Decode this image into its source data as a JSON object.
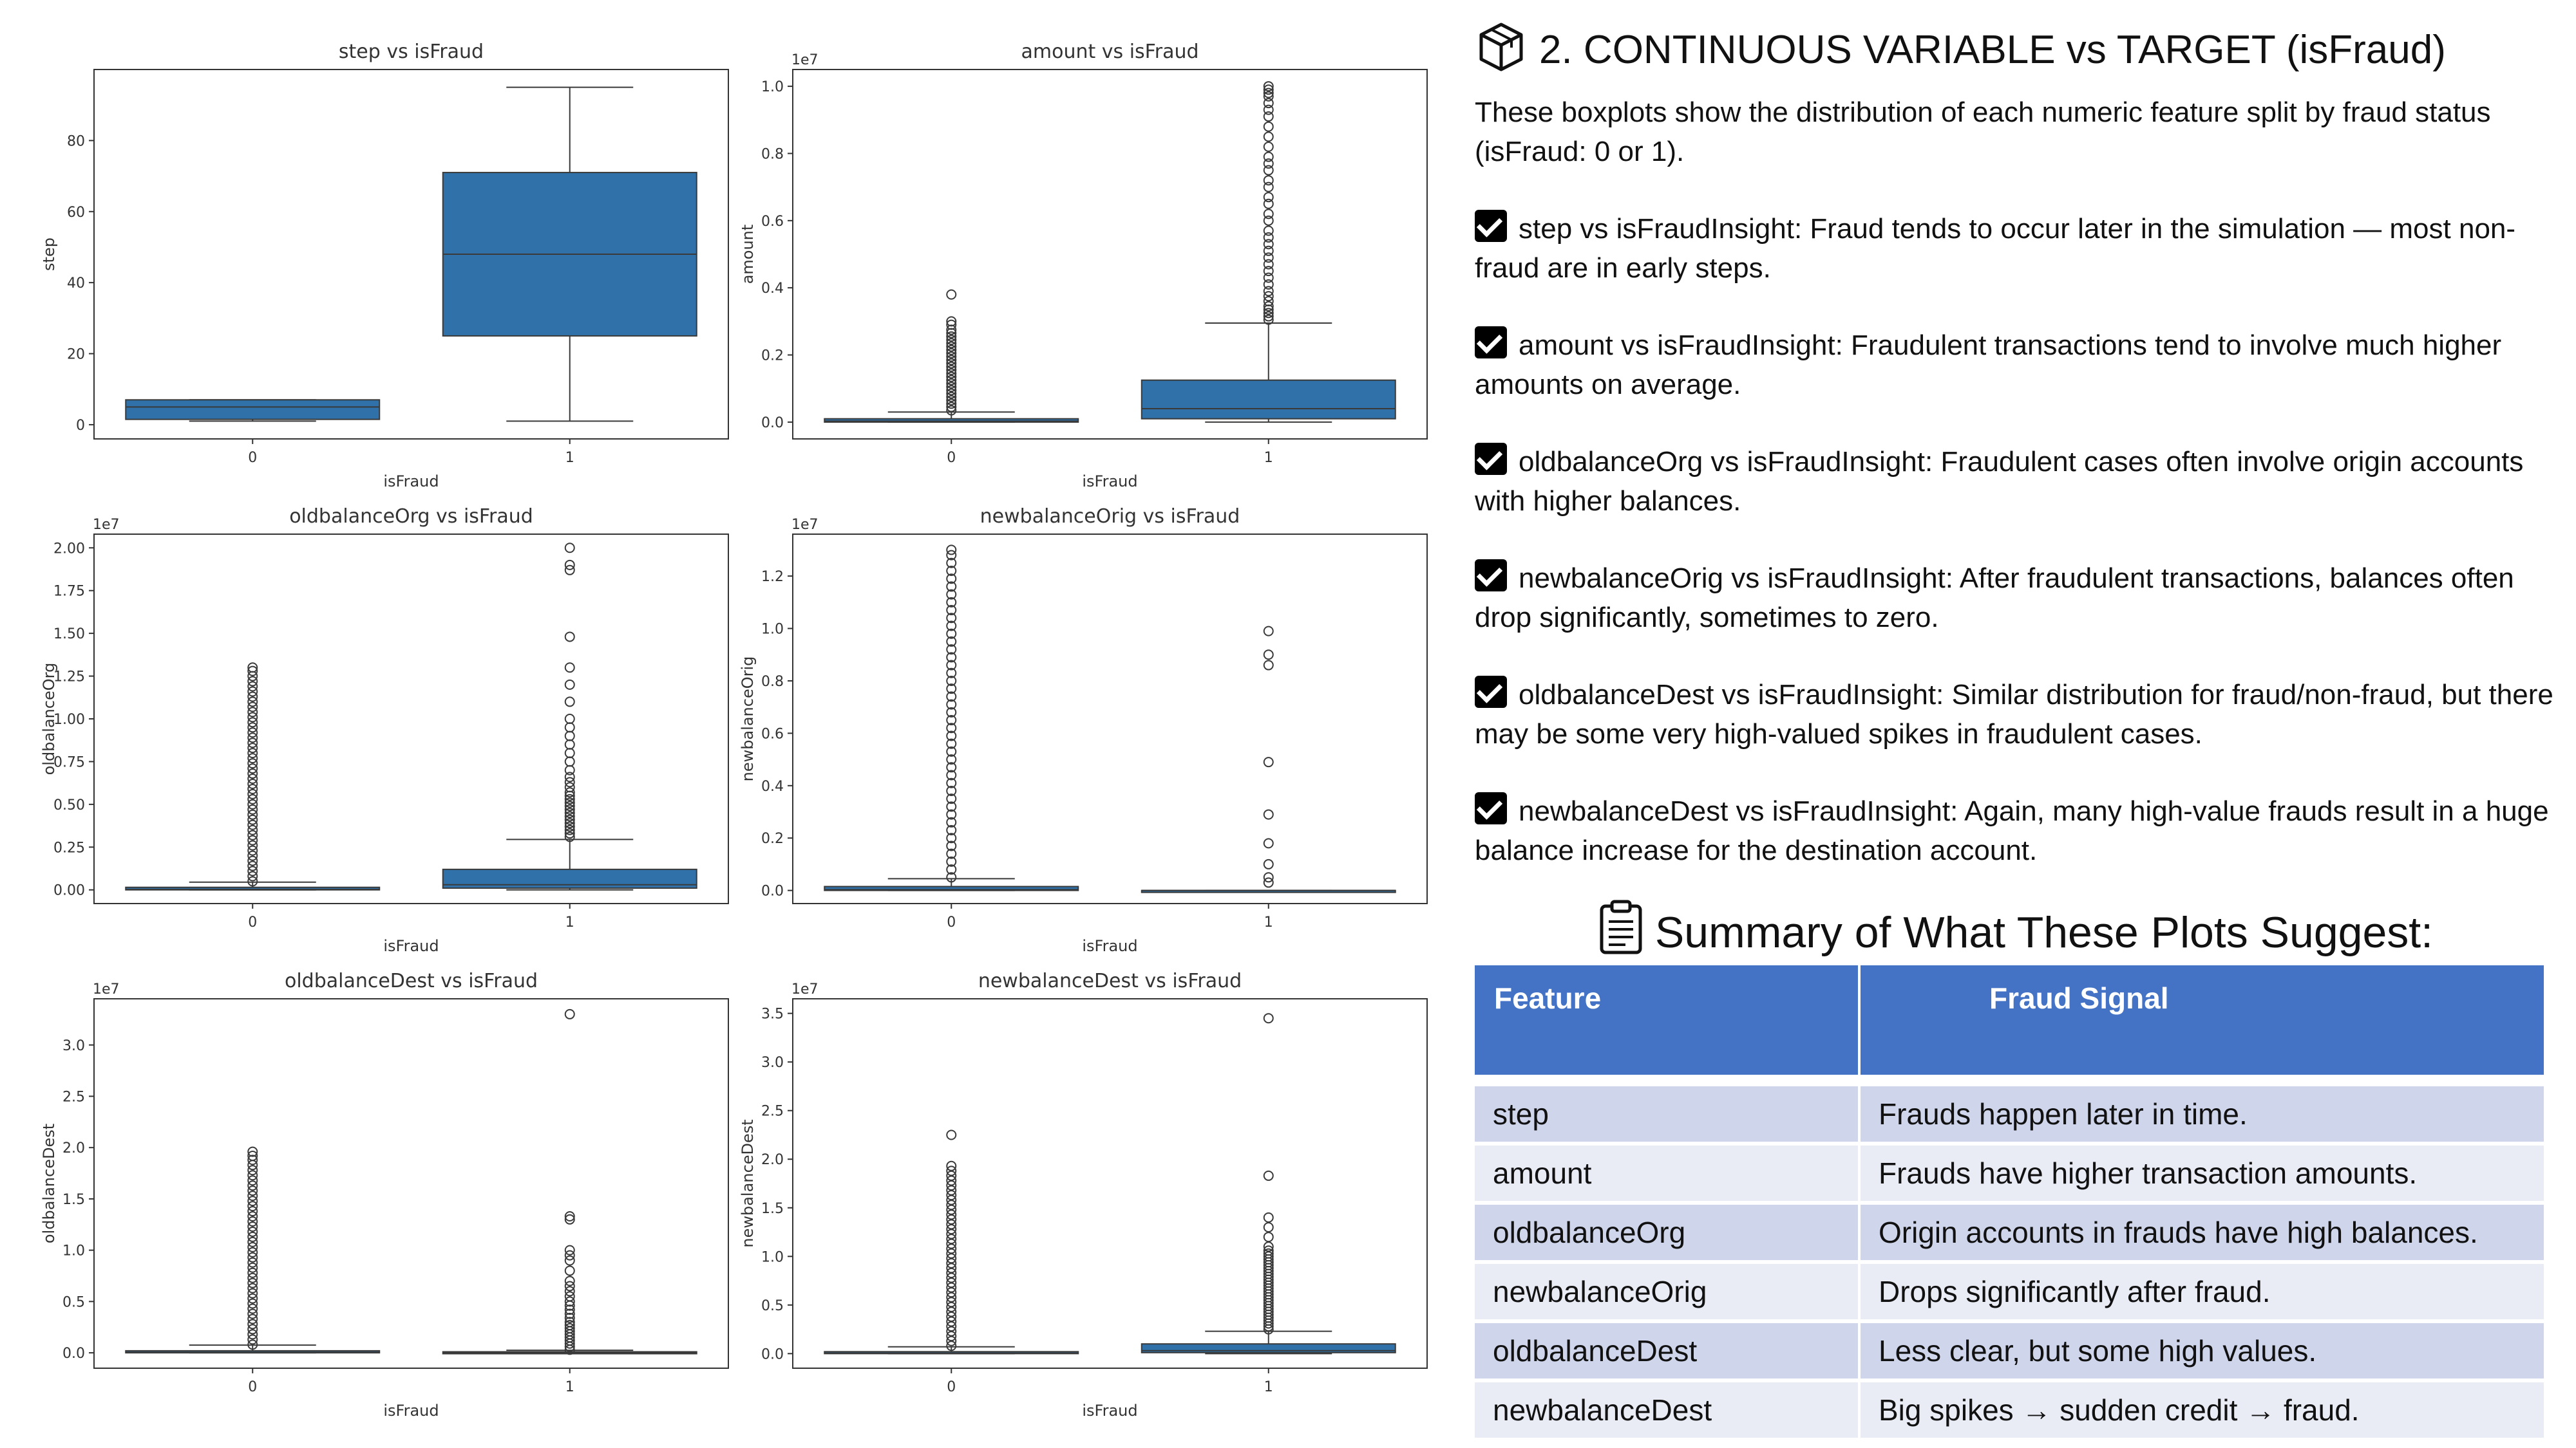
{
  "charts": {
    "common_xlabel": "isFraud",
    "categories": [
      "0",
      "1"
    ]
  },
  "chart_data": [
    {
      "type": "box",
      "title": "step vs isFraud",
      "xlabel": "isFraud",
      "ylabel": "step",
      "exponent": "",
      "categories": [
        "0",
        "1"
      ],
      "yticks": [
        0,
        20,
        40,
        60,
        80
      ],
      "ytick_labels": [
        "0",
        "20",
        "40",
        "60",
        "80"
      ],
      "ylim": [
        -4,
        100
      ],
      "boxes": [
        {
          "category": "0",
          "whisker_low": 1,
          "q1": 1.5,
          "median": 5,
          "q3": 7,
          "whisker_high": 7,
          "outliers": []
        },
        {
          "category": "1",
          "whisker_low": 1,
          "q1": 25,
          "median": 48,
          "q3": 71,
          "whisker_high": 95,
          "outliers": []
        }
      ]
    },
    {
      "type": "box",
      "title": "amount vs isFraud",
      "xlabel": "isFraud",
      "ylabel": "amount",
      "exponent": "1e7",
      "categories": [
        "0",
        "1"
      ],
      "yticks": [
        0.0,
        0.2,
        0.4,
        0.6,
        0.8,
        1.0
      ],
      "ytick_labels": [
        "0.0",
        "0.2",
        "0.4",
        "0.6",
        "0.8",
        "1.0"
      ],
      "ylim": [
        -0.05,
        1.05
      ],
      "boxes": [
        {
          "category": "0",
          "whisker_low": 0.0,
          "q1": 0.0,
          "median": 0.003,
          "q3": 0.01,
          "whisker_high": 0.03,
          "outliers": [
            0.035,
            0.045,
            0.055,
            0.065,
            0.075,
            0.085,
            0.095,
            0.105,
            0.115,
            0.125,
            0.135,
            0.145,
            0.155,
            0.165,
            0.175,
            0.185,
            0.195,
            0.205,
            0.215,
            0.225,
            0.235,
            0.245,
            0.255,
            0.265,
            0.275,
            0.29,
            0.3,
            0.38
          ]
        },
        {
          "category": "1",
          "whisker_low": 0.0,
          "q1": 0.01,
          "median": 0.04,
          "q3": 0.125,
          "whisker_high": 0.295,
          "outliers": [
            0.305,
            0.315,
            0.325,
            0.335,
            0.345,
            0.36,
            0.375,
            0.39,
            0.41,
            0.43,
            0.45,
            0.47,
            0.49,
            0.51,
            0.53,
            0.55,
            0.57,
            0.6,
            0.62,
            0.65,
            0.67,
            0.7,
            0.72,
            0.75,
            0.77,
            0.79,
            0.82,
            0.85,
            0.88,
            0.91,
            0.93,
            0.95,
            0.97,
            0.98,
            0.99,
            1.0
          ]
        }
      ]
    },
    {
      "type": "box",
      "title": "oldbalanceOrg vs isFraud",
      "xlabel": "isFraud",
      "ylabel": "oldbalanceOrg",
      "exponent": "1e7",
      "categories": [
        "0",
        "1"
      ],
      "yticks": [
        0.0,
        0.25,
        0.5,
        0.75,
        1.0,
        1.25,
        1.5,
        1.75,
        2.0
      ],
      "ytick_labels": [
        "0.00",
        "0.25",
        "0.50",
        "0.75",
        "1.00",
        "1.25",
        "1.50",
        "1.75",
        "2.00"
      ],
      "ylim": [
        -0.08,
        2.08
      ],
      "boxes": [
        {
          "category": "0",
          "whisker_low": 0.0,
          "q1": 0.0,
          "median": 0.003,
          "q3": 0.015,
          "whisker_high": 0.045,
          "outliers": [
            0.05,
            0.08,
            0.11,
            0.14,
            0.17,
            0.2,
            0.23,
            0.26,
            0.29,
            0.32,
            0.35,
            0.38,
            0.41,
            0.44,
            0.47,
            0.5,
            0.53,
            0.56,
            0.59,
            0.62,
            0.65,
            0.68,
            0.71,
            0.74,
            0.77,
            0.8,
            0.83,
            0.86,
            0.89,
            0.92,
            0.95,
            0.98,
            1.01,
            1.04,
            1.07,
            1.1,
            1.13,
            1.16,
            1.19,
            1.22,
            1.25,
            1.28,
            1.3
          ]
        },
        {
          "category": "1",
          "whisker_low": 0.0,
          "q1": 0.01,
          "median": 0.03,
          "q3": 0.12,
          "whisker_high": 0.295,
          "outliers": [
            0.31,
            0.33,
            0.35,
            0.37,
            0.39,
            0.41,
            0.43,
            0.45,
            0.47,
            0.49,
            0.51,
            0.53,
            0.55,
            0.57,
            0.6,
            0.63,
            0.66,
            0.7,
            0.75,
            0.8,
            0.85,
            0.9,
            0.95,
            1.0,
            1.1,
            1.2,
            1.3,
            1.48,
            1.87,
            1.9,
            2.0
          ]
        }
      ]
    },
    {
      "type": "box",
      "title": "newbalanceOrig vs isFraud",
      "xlabel": "isFraud",
      "ylabel": "newbalanceOrig",
      "exponent": "1e7",
      "categories": [
        "0",
        "1"
      ],
      "yticks": [
        0.0,
        0.2,
        0.4,
        0.6,
        0.8,
        1.0,
        1.2
      ],
      "ytick_labels": [
        "0.0",
        "0.2",
        "0.4",
        "0.6",
        "0.8",
        "1.0",
        "1.2"
      ],
      "ylim": [
        -0.05,
        1.36
      ],
      "boxes": [
        {
          "category": "0",
          "whisker_low": 0.0,
          "q1": 0.0,
          "median": 0.003,
          "q3": 0.015,
          "whisker_high": 0.045,
          "outliers": [
            0.05,
            0.08,
            0.11,
            0.14,
            0.17,
            0.2,
            0.23,
            0.26,
            0.29,
            0.32,
            0.35,
            0.38,
            0.41,
            0.44,
            0.47,
            0.5,
            0.53,
            0.56,
            0.59,
            0.62,
            0.65,
            0.68,
            0.71,
            0.74,
            0.77,
            0.8,
            0.83,
            0.86,
            0.89,
            0.92,
            0.95,
            0.98,
            1.01,
            1.04,
            1.07,
            1.1,
            1.13,
            1.16,
            1.19,
            1.22,
            1.25,
            1.28,
            1.3
          ]
        },
        {
          "category": "1",
          "whisker_low": 0.0,
          "q1": 0.0,
          "median": 0.0,
          "q3": 0.0,
          "whisker_high": 0.0,
          "outliers": [
            0.03,
            0.05,
            0.1,
            0.18,
            0.29,
            0.49,
            0.86,
            0.9,
            0.99
          ]
        }
      ]
    },
    {
      "type": "box",
      "title": "oldbalanceDest vs isFraud",
      "xlabel": "isFraud",
      "ylabel": "oldbalanceDest",
      "exponent": "1e7",
      "categories": [
        "0",
        "1"
      ],
      "yticks": [
        0.0,
        0.5,
        1.0,
        1.5,
        2.0,
        2.5,
        3.0
      ],
      "ytick_labels": [
        "0.0",
        "0.5",
        "1.0",
        "1.5",
        "2.0",
        "2.5",
        "3.0"
      ],
      "ylim": [
        -0.15,
        3.45
      ],
      "boxes": [
        {
          "category": "0",
          "whisker_low": 0.0,
          "q1": 0.0,
          "median": 0.005,
          "q3": 0.02,
          "whisker_high": 0.075,
          "outliers": [
            0.08,
            0.13,
            0.18,
            0.23,
            0.28,
            0.33,
            0.38,
            0.43,
            0.48,
            0.53,
            0.58,
            0.63,
            0.68,
            0.73,
            0.78,
            0.83,
            0.88,
            0.93,
            0.98,
            1.03,
            1.08,
            1.13,
            1.18,
            1.23,
            1.28,
            1.33,
            1.38,
            1.43,
            1.48,
            1.53,
            1.58,
            1.63,
            1.68,
            1.73,
            1.78,
            1.83,
            1.88,
            1.92,
            1.96
          ]
        },
        {
          "category": "1",
          "whisker_low": 0.0,
          "q1": 0.0,
          "median": 0.0,
          "q3": 0.01,
          "whisker_high": 0.025,
          "outliers": [
            0.03,
            0.06,
            0.09,
            0.12,
            0.15,
            0.18,
            0.21,
            0.24,
            0.27,
            0.3,
            0.34,
            0.38,
            0.42,
            0.46,
            0.5,
            0.55,
            0.6,
            0.65,
            0.7,
            0.8,
            0.9,
            0.95,
            1.0,
            1.3,
            1.33,
            3.3
          ]
        }
      ]
    },
    {
      "type": "box",
      "title": "newbalanceDest vs isFraud",
      "xlabel": "isFraud",
      "ylabel": "newbalanceDest",
      "exponent": "1e7",
      "categories": [
        "0",
        "1"
      ],
      "yticks": [
        0.0,
        0.5,
        1.0,
        1.5,
        2.0,
        2.5,
        3.0,
        3.5
      ],
      "ytick_labels": [
        "0.0",
        "0.5",
        "1.0",
        "1.5",
        "2.0",
        "2.5",
        "3.0",
        "3.5"
      ],
      "ylim": [
        -0.15,
        3.65
      ],
      "boxes": [
        {
          "category": "0",
          "whisker_low": 0.0,
          "q1": 0.0,
          "median": 0.005,
          "q3": 0.02,
          "whisker_high": 0.07,
          "outliers": [
            0.08,
            0.13,
            0.18,
            0.23,
            0.28,
            0.33,
            0.38,
            0.43,
            0.48,
            0.53,
            0.58,
            0.63,
            0.68,
            0.73,
            0.78,
            0.83,
            0.88,
            0.93,
            0.98,
            1.03,
            1.08,
            1.13,
            1.18,
            1.23,
            1.28,
            1.33,
            1.38,
            1.43,
            1.48,
            1.53,
            1.58,
            1.63,
            1.68,
            1.73,
            1.78,
            1.83,
            1.88,
            1.93,
            2.25
          ]
        },
        {
          "category": "1",
          "whisker_low": 0.0,
          "q1": 0.01,
          "median": 0.03,
          "q3": 0.1,
          "whisker_high": 0.23,
          "outliers": [
            0.25,
            0.28,
            0.31,
            0.34,
            0.37,
            0.4,
            0.43,
            0.46,
            0.49,
            0.52,
            0.55,
            0.58,
            0.61,
            0.64,
            0.67,
            0.7,
            0.73,
            0.76,
            0.79,
            0.82,
            0.85,
            0.88,
            0.91,
            0.94,
            0.97,
            1.0,
            1.03,
            1.06,
            1.1,
            1.2,
            1.3,
            1.4,
            1.83,
            3.45
          ]
        }
      ]
    }
  ],
  "colors": {
    "box_fill": "#2f71a8",
    "box_edge": "#3a3a3a",
    "table_header": "#4472c4",
    "table_row_odd": "#cfd5ea",
    "table_row_even": "#e9ebf5"
  },
  "right": {
    "heading": "2. CONTINUOUS VARIABLE vs TARGET (isFraud)",
    "heading_icon": "package-icon",
    "intro": " These boxplots show the distribution of each numeric feature split by fraud status (isFraud: 0 or 1).",
    "insights": [
      "step vs isFraudInsight: Fraud tends to occur later in the simulation — most non-fraud are in early steps.",
      "amount vs isFraudInsight: Fraudulent transactions tend to involve much higher amounts on average.",
      "oldbalanceOrg vs isFraudInsight: Fraudulent cases often involve origin accounts with higher balances.",
      "newbalanceOrig vs isFraudInsight: After fraudulent transactions, balances often drop significantly, sometimes to zero.",
      "oldbalanceDest vs isFraudInsight: Similar distribution for fraud/non-fraud, but there may be some very high-valued spikes in fraudulent cases.",
      "newbalanceDest vs isFraudInsight: Again, many high-value frauds result in a huge balance increase for the destination account."
    ],
    "summary_heading": "Summary of What These Plots Suggest:",
    "summary_icon": "clipboard-icon",
    "table": {
      "headers": [
        "Feature",
        "Fraud Signal"
      ],
      "rows": [
        [
          "step",
          "Frauds happen later in time."
        ],
        [
          "amount",
          "Frauds have higher transaction amounts."
        ],
        [
          "oldbalanceOrg",
          "Origin accounts in frauds have high balances."
        ],
        [
          "newbalanceOrig",
          "Drops significantly after fraud."
        ],
        [
          "oldbalanceDest",
          "Less clear, but some high values."
        ],
        [
          "newbalanceDest",
          "Big spikes → sudden credit → fraud."
        ]
      ]
    }
  }
}
